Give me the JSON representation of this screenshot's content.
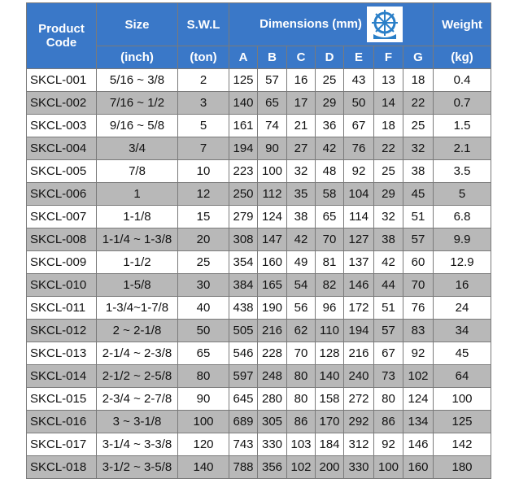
{
  "header": {
    "product_code": "Product Code",
    "size": "Size",
    "size_unit": "(inch)",
    "swl": "S.W.L",
    "swl_unit": "(ton)",
    "dimensions": "Dimensions (mm)",
    "dims": [
      "A",
      "B",
      "C",
      "D",
      "E",
      "F",
      "G"
    ],
    "weight": "Weight",
    "weight_unit": "(kg)"
  },
  "table": {
    "rows": [
      [
        "SKCL-001",
        "5/16 ~ 3/8",
        "2",
        "125",
        "57",
        "16",
        "25",
        "43",
        "13",
        "18",
        "0.4"
      ],
      [
        "SKCL-002",
        "7/16 ~ 1/2",
        "3",
        "140",
        "65",
        "17",
        "29",
        "50",
        "14",
        "22",
        "0.7"
      ],
      [
        "SKCL-003",
        "9/16 ~ 5/8",
        "5",
        "161",
        "74",
        "21",
        "36",
        "67",
        "18",
        "25",
        "1.5"
      ],
      [
        "SKCL-004",
        "3/4",
        "7",
        "194",
        "90",
        "27",
        "42",
        "76",
        "22",
        "32",
        "2.1"
      ],
      [
        "SKCL-005",
        "7/8",
        "10",
        "223",
        "100",
        "32",
        "48",
        "92",
        "25",
        "38",
        "3.5"
      ],
      [
        "SKCL-006",
        "1",
        "12",
        "250",
        "112",
        "35",
        "58",
        "104",
        "29",
        "45",
        "5"
      ],
      [
        "SKCL-007",
        "1-1/8",
        "15",
        "279",
        "124",
        "38",
        "65",
        "114",
        "32",
        "51",
        "6.8"
      ],
      [
        "SKCL-008",
        "1-1/4 ~ 1-3/8",
        "20",
        "308",
        "147",
        "42",
        "70",
        "127",
        "38",
        "57",
        "9.9"
      ],
      [
        "SKCL-009",
        "1-1/2",
        "25",
        "354",
        "160",
        "49",
        "81",
        "137",
        "42",
        "60",
        "12.9"
      ],
      [
        "SKCL-010",
        "1-5/8",
        "30",
        "384",
        "165",
        "54",
        "82",
        "146",
        "44",
        "70",
        "16"
      ],
      [
        "SKCL-011",
        "1-3/4~1-7/8",
        "40",
        "438",
        "190",
        "56",
        "96",
        "172",
        "51",
        "76",
        "24"
      ],
      [
        "SKCL-012",
        "2 ~ 2-1/8",
        "50",
        "505",
        "216",
        "62",
        "110",
        "194",
        "57",
        "83",
        "34"
      ],
      [
        "SKCL-013",
        "2-1/4 ~ 2-3/8",
        "65",
        "546",
        "228",
        "70",
        "128",
        "216",
        "67",
        "92",
        "45"
      ],
      [
        "SKCL-014",
        "2-1/2 ~ 2-5/8",
        "80",
        "597",
        "248",
        "80",
        "140",
        "240",
        "73",
        "102",
        "64"
      ],
      [
        "SKCL-015",
        "2-3/4 ~ 2-7/8",
        "90",
        "645",
        "280",
        "80",
        "158",
        "272",
        "80",
        "124",
        "100"
      ],
      [
        "SKCL-016",
        "3 ~ 3-1/8",
        "100",
        "689",
        "305",
        "86",
        "170",
        "292",
        "86",
        "134",
        "125"
      ],
      [
        "SKCL-017",
        "3-1/4 ~ 3-3/8",
        "120",
        "743",
        "330",
        "103",
        "184",
        "312",
        "92",
        "146",
        "142"
      ],
      [
        "SKCL-018",
        "3-1/2 ~ 3-5/8",
        "140",
        "788",
        "356",
        "102",
        "200",
        "330",
        "100",
        "160",
        "180"
      ]
    ]
  }
}
